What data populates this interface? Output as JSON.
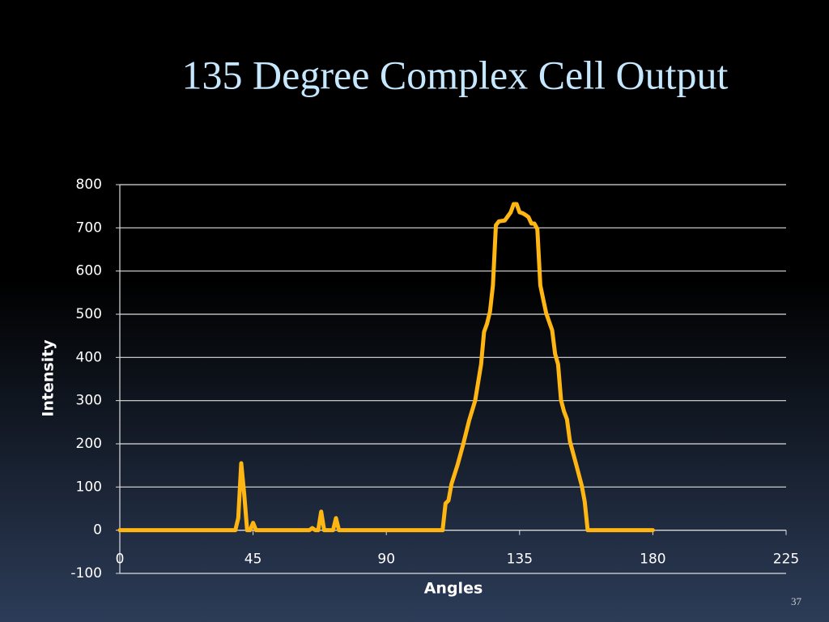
{
  "chart_data": {
    "type": "line",
    "title": "135 Degree Complex Cell Output",
    "x_label": "Angles",
    "y_label": "Intensity",
    "x": [
      0,
      39,
      40,
      41,
      42,
      43,
      44,
      45,
      46,
      64,
      65,
      66,
      67,
      68,
      69,
      72,
      73,
      74,
      109,
      110,
      111,
      112,
      114,
      116,
      118,
      120,
      122,
      123,
      124,
      125,
      126,
      127,
      128,
      130,
      132,
      133,
      134,
      135,
      136,
      137,
      138,
      139,
      140,
      141,
      142,
      143,
      144,
      146,
      147,
      148,
      149,
      150,
      151,
      152,
      154,
      156,
      157,
      158,
      180
    ],
    "series": [
      {
        "name": "Intensity",
        "color": "#ffb612",
        "values": [
          0,
          0,
          28,
          155,
          84,
          0,
          0,
          17,
          0,
          0,
          5,
          0,
          0,
          43,
          0,
          0,
          28,
          0,
          0,
          62,
          69,
          107,
          150,
          200,
          255,
          300,
          384,
          459,
          478,
          506,
          567,
          706,
          715,
          717,
          736,
          755,
          755,
          736,
          734,
          730,
          725,
          710,
          710,
          697,
          567,
          534,
          502,
          463,
          408,
          384,
          301,
          275,
          257,
          206,
          155,
          103,
          66,
          0,
          0
        ]
      }
    ],
    "xlim": [
      0,
      225
    ],
    "xticks": [
      0,
      45,
      90,
      135,
      180,
      225
    ],
    "ylim": [
      -100,
      800
    ],
    "yticks": [
      -100,
      0,
      100,
      200,
      300,
      400,
      500,
      600,
      700,
      800
    ],
    "grid": true
  },
  "page_number": "37"
}
